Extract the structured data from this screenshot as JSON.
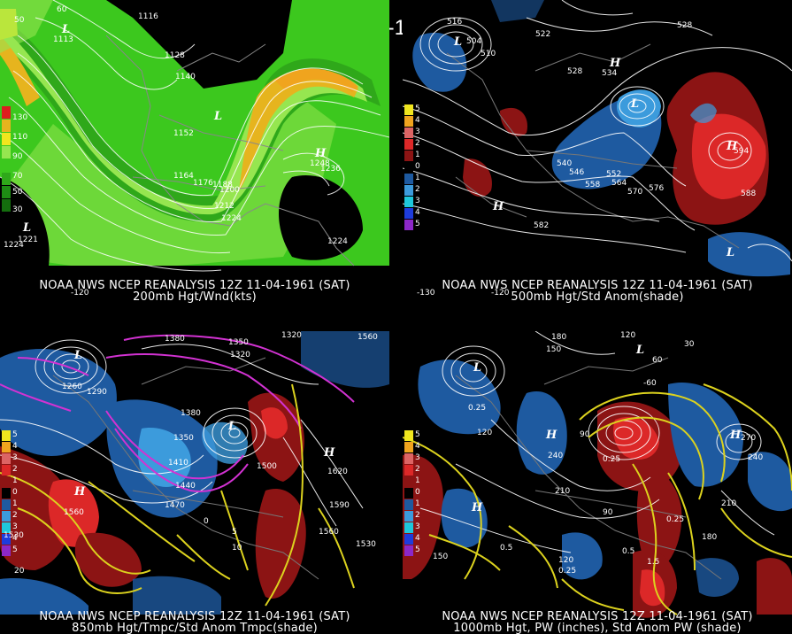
{
  "title": "12Z 11-04-1961 (SAT)",
  "panels": [
    {
      "caption_line1": "NOAA NWS NCEP REANALYSIS 12Z 11-04-1961 (SAT)",
      "caption_line2": "200mb Hgt/Wnd(kts)",
      "legend": [
        "130",
        "110",
        "90",
        "70",
        "50",
        "30"
      ],
      "contour_labels": [
        "1116",
        "1128",
        "1140",
        "1152",
        "1164",
        "1176",
        "1188",
        "1200",
        "1212",
        "1224",
        "1236",
        "1224",
        "1224",
        "1113",
        "1221",
        "1248"
      ],
      "highs_lows": [
        "L",
        "L",
        "H",
        "L"
      ],
      "coords": [
        "60",
        "50",
        "-120"
      ]
    },
    {
      "caption_line1": "NOAA NWS NCEP REANALYSIS 12Z 11-04-1961 (SAT)",
      "caption_line2": "500mb Hgt/Std Anom(shade)",
      "legend": [
        "5",
        "4",
        "3",
        "2",
        "1",
        "0",
        "1",
        "2",
        "3",
        "4",
        "5"
      ],
      "contour_labels": [
        "516",
        "522",
        "528",
        "534",
        "540",
        "546",
        "552",
        "558",
        "564",
        "570",
        "576",
        "582",
        "588",
        "594",
        "504",
        "510",
        "528"
      ],
      "highs_lows": [
        "L",
        "H",
        "L",
        "H",
        "H",
        "L"
      ],
      "coords": [
        "-130",
        "-120"
      ]
    },
    {
      "caption_line1": "NOAA NWS NCEP REANALYSIS 12Z 11-04-1961 (SAT)",
      "caption_line2": "850mb Hgt/Tmpc/Std Anom Tmpc(shade)",
      "legend": [
        "5",
        "4",
        "3",
        "2",
        "1",
        "0",
        "1",
        "2",
        "3",
        "4",
        "5"
      ],
      "contour_labels": [
        "1380",
        "1350",
        "1320",
        "1320",
        "1560",
        "1260",
        "1290",
        "1380",
        "1350",
        "1410",
        "1440",
        "1470",
        "1500",
        "1620",
        "1560",
        "1590",
        "1560",
        "1530",
        "1530",
        "20",
        "10",
        "5",
        "0"
      ],
      "highs_lows": [
        "L",
        "L",
        "H",
        "H"
      ]
    },
    {
      "caption_line1": "NOAA NWS NCEP REANALYSIS 12Z 11-04-1961 (SAT)",
      "caption_line2": "1000mb Hgt, PW (inches), Std Anom PW (shade)",
      "legend": [
        "5",
        "4",
        "3",
        "2",
        "1",
        "0",
        "1",
        "2",
        "3",
        "4",
        "5"
      ],
      "contour_labels": [
        "180",
        "150",
        "120",
        "60",
        "30",
        "0.25",
        "120",
        "240",
        "210",
        "90",
        "270",
        "240",
        "210",
        "180",
        "150",
        "120",
        "0.5",
        "0.25",
        "0.25",
        "1.5",
        "0.5",
        "0.25",
        "90",
        "-60"
      ],
      "highs_lows": [
        "L",
        "H",
        "H",
        "L",
        "H"
      ]
    }
  ],
  "colors": {
    "jet_light": "#3cc81e",
    "jet_mid": "#96e650",
    "jet_strong": "#e6b41e",
    "jet_core": "#f0e61e",
    "anom_pos1": "#8c1414",
    "anom_pos2": "#dc2828",
    "anom_neg1": "#1e5aa0",
    "anom_neg2": "#3c9bdc",
    "temp_contour": "#dcd21e",
    "cold_contour": "#d232d2"
  }
}
